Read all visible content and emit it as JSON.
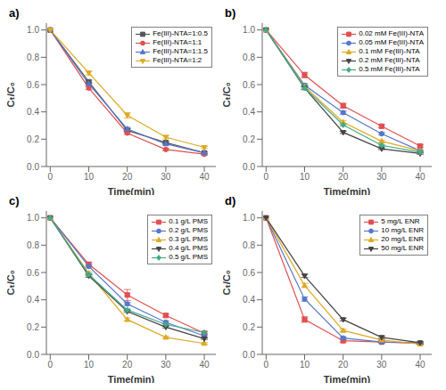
{
  "chart_data": [
    {
      "type": "line",
      "title": "a)",
      "x": [
        0,
        10,
        20,
        30,
        40
      ],
      "series": [
        {
          "name": "Fe(III)-NTA=1:0.5",
          "color": "#555555",
          "marker": "square",
          "values": [
            1.0,
            0.62,
            0.265,
            0.175,
            0.1
          ],
          "yerr": [
            0,
            0.012,
            0.012,
            0.01,
            0.008
          ]
        },
        {
          "name": "Fe(III)-NTA=1:1",
          "color": "#e05050",
          "marker": "circle",
          "values": [
            1.0,
            0.575,
            0.245,
            0.125,
            0.09
          ],
          "yerr": [
            0,
            0.012,
            0.01,
            0.008,
            0.006
          ]
        },
        {
          "name": "Fe(III)-NTA=1:1.5",
          "color": "#5577cc",
          "marker": "triangle-up",
          "values": [
            1.0,
            0.605,
            0.275,
            0.165,
            0.1
          ],
          "yerr": [
            0,
            0.012,
            0.012,
            0.008,
            0.006
          ]
        },
        {
          "name": "Fe(III)-NTA=1:2",
          "color": "#ddaa22",
          "marker": "triangle-down",
          "values": [
            1.0,
            0.685,
            0.375,
            0.215,
            0.14
          ],
          "yerr": [
            0,
            0.015,
            0.02,
            0.012,
            0.008
          ]
        }
      ],
      "xlabel": "Time(min)",
      "ylabel": "Cₜ/C₀",
      "xlim": [
        -1,
        43
      ],
      "ylim": [
        0.0,
        1.05
      ],
      "xticks": [
        0,
        10,
        20,
        30,
        40
      ],
      "yticks": [
        {
          "value": 0.0,
          "label": "0.0"
        },
        {
          "value": 0.2,
          "label": "0.2"
        },
        {
          "value": 0.4,
          "label": "0.4"
        },
        {
          "value": 0.6,
          "label": "0.6"
        },
        {
          "value": 0.8,
          "label": "0.8"
        },
        {
          "value": 1.0,
          "label": "1.0"
        }
      ],
      "legend": "upper right",
      "grid": false
    },
    {
      "type": "line",
      "title": "b)",
      "x": [
        0,
        10,
        20,
        30,
        40
      ],
      "series": [
        {
          "name": "0.02 mM Fe(III)-NTA",
          "color": "#e05050",
          "marker": "square",
          "values": [
            1.0,
            0.67,
            0.445,
            0.295,
            0.15
          ],
          "yerr": [
            0,
            0.02,
            0.018,
            0.012,
            0.008
          ]
        },
        {
          "name": "0.05 mM Fe(III)-NTA",
          "color": "#5577cc",
          "marker": "circle",
          "values": [
            1.0,
            0.595,
            0.395,
            0.24,
            0.115
          ],
          "yerr": [
            0,
            0.012,
            0.012,
            0.008,
            0.006
          ]
        },
        {
          "name": "0.1 mM Fe(III)-NTA",
          "color": "#ddaa22",
          "marker": "triangle-up",
          "values": [
            1.0,
            0.585,
            0.325,
            0.185,
            0.115
          ],
          "yerr": [
            0,
            0.012,
            0.012,
            0.008,
            0.006
          ]
        },
        {
          "name": "0.2 mM Fe(III)-NTA",
          "color": "#444444",
          "marker": "triangle-down",
          "values": [
            1.0,
            0.575,
            0.25,
            0.13,
            0.095
          ],
          "yerr": [
            0,
            0.012,
            0.008,
            0.006,
            0.005
          ]
        },
        {
          "name": "0.5 mM Fe(III)-NTA",
          "color": "#44aa88",
          "marker": "diamond",
          "values": [
            1.0,
            0.575,
            0.305,
            0.155,
            0.105
          ],
          "yerr": [
            0,
            0.012,
            0.01,
            0.006,
            0.005
          ]
        }
      ],
      "xlabel": "Time(min)",
      "ylabel": "Cₜ/C₀",
      "xlim": [
        -1,
        43
      ],
      "ylim": [
        0.0,
        1.05
      ],
      "xticks": [
        0,
        10,
        20,
        30,
        40
      ],
      "yticks": [
        {
          "value": 0.0,
          "label": "0.0"
        },
        {
          "value": 0.2,
          "label": "0.2"
        },
        {
          "value": 0.4,
          "label": "0.4"
        },
        {
          "value": 0.6,
          "label": "0.6"
        },
        {
          "value": 0.8,
          "label": "0.8"
        },
        {
          "value": 1.0,
          "label": "1.0"
        }
      ],
      "legend": "upper right",
      "grid": false
    },
    {
      "type": "line",
      "title": "c)",
      "x": [
        0,
        10,
        20,
        30,
        40
      ],
      "series": [
        {
          "name": "0.1 g/L PMS",
          "color": "#e05050",
          "marker": "square",
          "values": [
            1.0,
            0.66,
            0.435,
            0.285,
            0.155
          ],
          "yerr": [
            0,
            0.015,
            0.04,
            0.012,
            0.012
          ]
        },
        {
          "name": "0.2 g/L PMS",
          "color": "#5577cc",
          "marker": "circle",
          "values": [
            1.0,
            0.645,
            0.37,
            0.235,
            0.135
          ],
          "yerr": [
            0,
            0.012,
            0.012,
            0.01,
            0.008
          ]
        },
        {
          "name": "0.3 g/L PMS",
          "color": "#ddaa22",
          "marker": "triangle-up",
          "values": [
            1.0,
            0.595,
            0.255,
            0.125,
            0.08
          ],
          "yerr": [
            0,
            0.012,
            0.012,
            0.008,
            0.006
          ]
        },
        {
          "name": "0.4 g/L PMS",
          "color": "#444444",
          "marker": "triangle-down",
          "values": [
            1.0,
            0.575,
            0.315,
            0.2,
            0.115
          ],
          "yerr": [
            0,
            0.01,
            0.008,
            0.006,
            0.005
          ]
        },
        {
          "name": "0.5 g/L PMS",
          "color": "#44aa88",
          "marker": "diamond",
          "values": [
            1.0,
            0.585,
            0.325,
            0.22,
            0.16
          ],
          "yerr": [
            0,
            0.01,
            0.008,
            0.006,
            0.008
          ]
        }
      ],
      "xlabel": "Time(min)",
      "ylabel": "Cₜ/C₀",
      "xlim": [
        -1,
        43
      ],
      "ylim": [
        0.0,
        1.05
      ],
      "xticks": [
        0,
        10,
        20,
        30,
        40
      ],
      "yticks": [
        {
          "value": 0.0,
          "label": "0.0"
        },
        {
          "value": 0.2,
          "label": "0.2"
        },
        {
          "value": 0.4,
          "label": "0.4"
        },
        {
          "value": 0.6,
          "label": "0.6"
        },
        {
          "value": 0.8,
          "label": "0.8"
        },
        {
          "value": 1.0,
          "label": "1.0"
        }
      ],
      "legend": "upper right",
      "grid": false
    },
    {
      "type": "line",
      "title": "d)",
      "x": [
        0,
        10,
        20,
        30,
        40
      ],
      "series": [
        {
          "name": "5 mg/L ENR",
          "color": "#e05050",
          "marker": "square",
          "values": [
            1.0,
            0.255,
            0.1,
            0.09,
            0.08
          ],
          "yerr": [
            0,
            0.02,
            0.01,
            0.006,
            0.005
          ]
        },
        {
          "name": "10 mg/L ENR",
          "color": "#5577cc",
          "marker": "circle",
          "values": [
            1.0,
            0.405,
            0.12,
            0.09,
            0.085
          ],
          "yerr": [
            0,
            0.015,
            0.008,
            0.006,
            0.005
          ]
        },
        {
          "name": "20 mg/L ENR",
          "color": "#ddaa22",
          "marker": "triangle-up",
          "values": [
            1.0,
            0.505,
            0.175,
            0.105,
            0.075
          ],
          "yerr": [
            0,
            0.015,
            0.01,
            0.006,
            0.005
          ]
        },
        {
          "name": "50 mg/L ENR",
          "color": "#444444",
          "marker": "triangle-down",
          "values": [
            1.0,
            0.575,
            0.255,
            0.125,
            0.085
          ],
          "yerr": [
            0,
            0.012,
            0.01,
            0.008,
            0.008
          ]
        }
      ],
      "xlabel": "Time(min)",
      "ylabel": "Cₜ/C₀",
      "xlim": [
        -1,
        43
      ],
      "ylim": [
        0.0,
        1.05
      ],
      "xticks": [
        0,
        10,
        20,
        30,
        40
      ],
      "yticks": [
        {
          "value": 0.0,
          "label": "0.0"
        },
        {
          "value": 0.2,
          "label": "0.2"
        },
        {
          "value": 0.4,
          "label": "0.4"
        },
        {
          "value": 0.6,
          "label": "0.6"
        },
        {
          "value": 0.8,
          "label": "0.8"
        },
        {
          "value": 1.0,
          "label": "1.0"
        }
      ],
      "legend": "upper right",
      "grid": false
    }
  ]
}
